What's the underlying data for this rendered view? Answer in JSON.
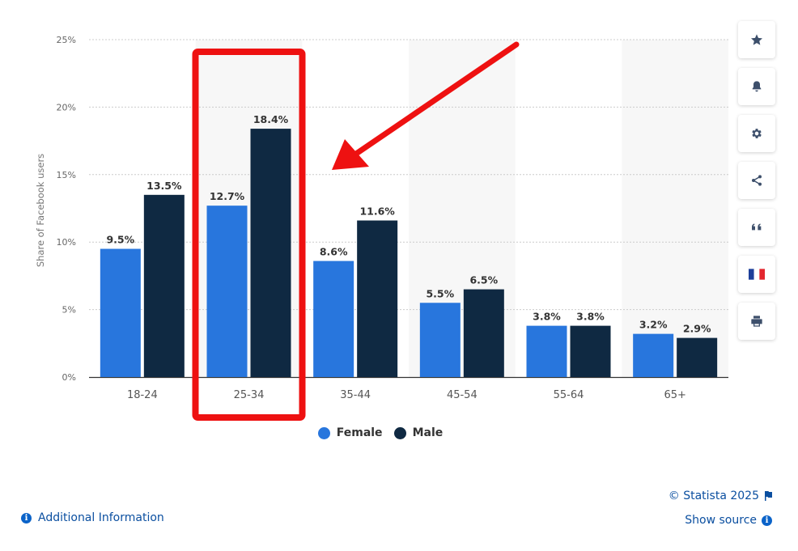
{
  "chart_data": {
    "type": "bar",
    "ylabel": "Share of Facebook users",
    "xlabel": "",
    "ylim": [
      0,
      25
    ],
    "yticks": [
      "0%",
      "5%",
      "10%",
      "15%",
      "20%",
      "25%"
    ],
    "ytick_values": [
      0,
      5,
      10,
      15,
      20,
      25
    ],
    "categories": [
      "18-24",
      "25-34",
      "35-44",
      "45-54",
      "55-64",
      "65+"
    ],
    "series": [
      {
        "name": "Female",
        "color": "#2876dd",
        "values": [
          9.5,
          12.7,
          8.6,
          5.5,
          3.8,
          3.2
        ],
        "labels": [
          "9.5%",
          "12.7%",
          "8.6%",
          "5.5%",
          "3.8%",
          "3.2%"
        ]
      },
      {
        "name": "Male",
        "color": "#0f2942",
        "values": [
          13.5,
          18.4,
          11.6,
          6.5,
          3.8,
          2.9
        ],
        "labels": [
          "13.5%",
          "18.4%",
          "11.6%",
          "6.5%",
          "3.8%",
          "2.9%"
        ]
      }
    ],
    "grid": true,
    "legend_position": "bottom",
    "annotations": {
      "highlight_category": "25-34",
      "highlight_color": "#ee1111",
      "arrow": "points to 25-34"
    }
  },
  "legend": {
    "female": "Female",
    "male": "Male",
    "female_color": "#2876dd",
    "male_color": "#0f2942"
  },
  "toolbar": {
    "icons": [
      "star-icon",
      "bell-icon",
      "gear-icon",
      "share-icon",
      "quote-icon",
      "french-flag-icon",
      "print-icon"
    ]
  },
  "footer": {
    "copyright": "© Statista 2025",
    "show_source": "Show source",
    "additional_info": "Additional Information",
    "info_glyph": "i"
  }
}
